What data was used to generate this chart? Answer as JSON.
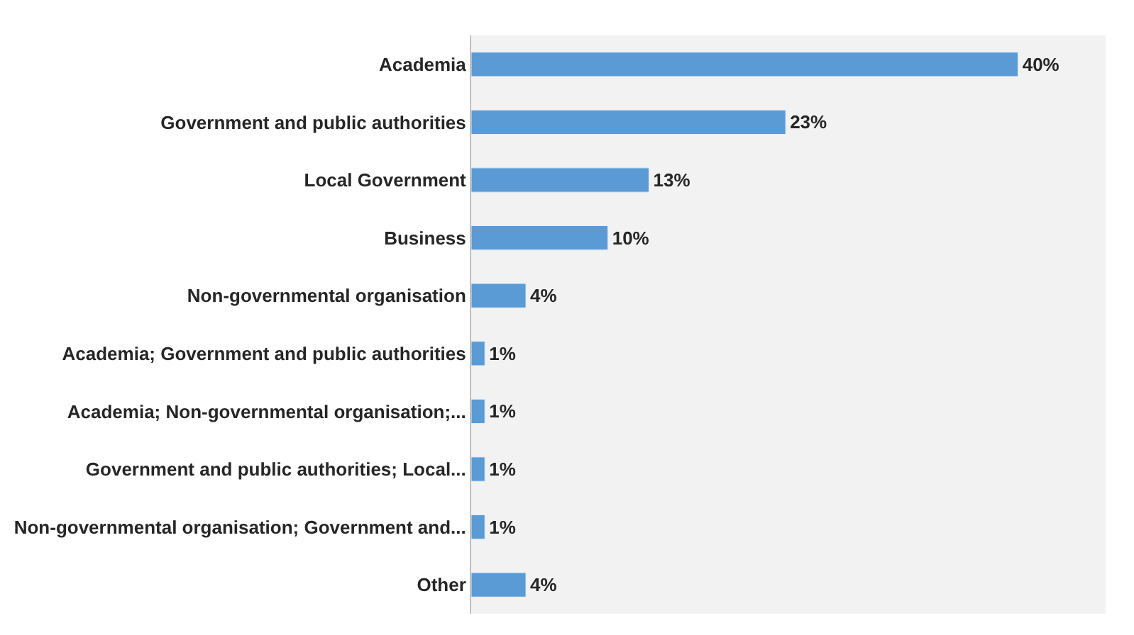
{
  "chart_data": {
    "type": "bar",
    "orientation": "horizontal",
    "categories": [
      "Academia",
      "Government and public authorities",
      "Local Government",
      "Business",
      "Non-governmental organisation",
      "Academia; Government and public authorities",
      "Academia; Non-governmental organisation;...",
      "Government and public authorities; Local...",
      "Non-governmental organisation; Government and...",
      "Other"
    ],
    "values": [
      40,
      23,
      13,
      10,
      4,
      1,
      1,
      1,
      1,
      4
    ],
    "value_labels": [
      "40%",
      "23%",
      "13%",
      "10%",
      "4%",
      "1%",
      "1%",
      "1%",
      "1%",
      "4%"
    ],
    "color": "#5b9bd5",
    "grid": false,
    "legend": false
  }
}
